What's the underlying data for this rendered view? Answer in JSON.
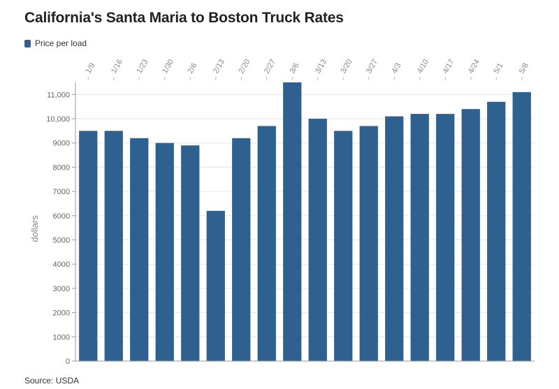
{
  "chart_data": {
    "type": "bar",
    "title": "California's Santa Maria to Boston Truck Rates",
    "legend": [
      "Price per load"
    ],
    "ylabel": "dollars",
    "xlabel": "",
    "source": "Source: USDA",
    "ylim": [
      0,
      11500
    ],
    "yticks": [
      0,
      1000,
      2000,
      3000,
      4000,
      5000,
      6000,
      7000,
      8000,
      9000,
      10000,
      11000
    ],
    "ytick_labels": [
      "0",
      "1000",
      "2000",
      "3000",
      "4000",
      "5000",
      "6000",
      "7000",
      "8000",
      "9000",
      "10,000",
      "11,000"
    ],
    "categories": [
      "1/9",
      "1/16",
      "1/23",
      "1/30",
      "2/6",
      "2/13",
      "2/20",
      "2/27",
      "3/6",
      "3/13",
      "3/20",
      "3/27",
      "4/3",
      "4/10",
      "4/17",
      "4/24",
      "5/1",
      "5/8"
    ],
    "series": [
      {
        "name": "Price per load",
        "values": [
          9500,
          9500,
          9200,
          9000,
          8900,
          6200,
          9200,
          9700,
          11500,
          10000,
          9500,
          9700,
          10100,
          10200,
          10200,
          10400,
          10700,
          11100
        ]
      }
    ],
    "grid": true,
    "legend_position": "top-left",
    "colors": {
      "bar": "#2e6190",
      "grid": "#e6e6e6",
      "axis": "#999999"
    }
  }
}
